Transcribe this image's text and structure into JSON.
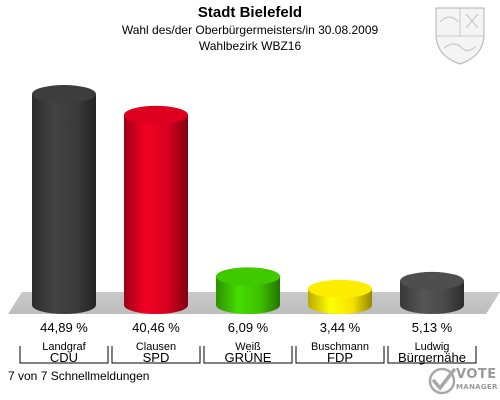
{
  "header": {
    "title": "Stadt Bielefeld",
    "subtitle": "Wahl des/der Oberbürgermeisters/in 30.08.2009",
    "district": "Wahlbezirk WBZ16"
  },
  "footer": {
    "status": "7 von 7 Schnellmeldungen"
  },
  "logo": {
    "line1": "VOTE",
    "line2": "MANAGER"
  },
  "icons": {
    "crest": "coat-of-arms-icon",
    "logo": "vote-manager-logo-icon"
  },
  "chart_data": {
    "type": "bar",
    "title": "Stadt Bielefeld",
    "subtitle": "Wahl des/der Oberbürgermeisters/in 30.08.2009",
    "xlabel": "",
    "ylabel": "",
    "ylim": [
      0,
      50
    ],
    "grid": false,
    "legend": "none",
    "categories": [
      "Landgraf",
      "Clausen",
      "Weiß",
      "Buschmann",
      "Ludwig"
    ],
    "parties": [
      "CDU",
      "SPD",
      "GRÜNE",
      "FDP",
      "Bürgernähe"
    ],
    "values": [
      44.89,
      40.46,
      6.09,
      3.44,
      5.13
    ],
    "labels": [
      "44,89 %",
      "40,46 %",
      "6,09 %",
      "3,44 %",
      "5,13 %"
    ],
    "colors": [
      "#3a3a3a",
      "#d4001e",
      "#3cc000",
      "#f5e200",
      "#4a4a4a"
    ]
  }
}
